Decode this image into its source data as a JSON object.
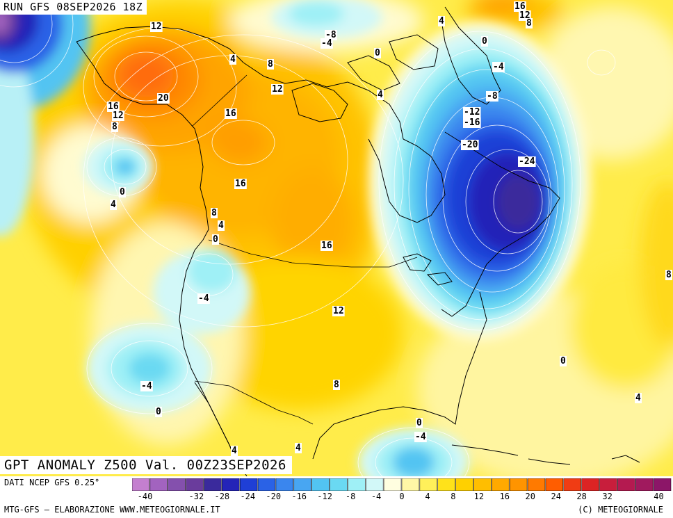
{
  "header": {
    "run": "RUN GFS 08SEP2026 18Z",
    "title": "GPT ANOMALY Z500 Val. 00Z23SEP2026"
  },
  "footer": {
    "source": "DATI NCEP GFS 0.25°",
    "credit_left": "MTG-GFS – ELABORAZIONE WWW.METEOGIORNALE.IT",
    "credit_right": "(C) METEOGIORNALE"
  },
  "colorbar": {
    "tick_labels": [
      "-40",
      "-32",
      "-28",
      "-24",
      "-20",
      "-16",
      "-12",
      "-8",
      "-4",
      "0",
      "4",
      "8",
      "12",
      "16",
      "20",
      "24",
      "28",
      "32",
      "40"
    ],
    "colors": [
      "#c47fcf",
      "#a263bf",
      "#8450ad",
      "#6a3c9c",
      "#3a2a9c",
      "#2424b8",
      "#1f3fd6",
      "#2a62e6",
      "#3a86ee",
      "#48a6f2",
      "#52c4f2",
      "#6ad9f2",
      "#9ff0f6",
      "#d2f8f8",
      "#fffee0",
      "#fff7a6",
      "#fff05a",
      "#ffe21a",
      "#ffd000",
      "#ffbe00",
      "#ffa900",
      "#ff9400",
      "#ff7a00",
      "#ff5d00",
      "#f03c14",
      "#dc2424",
      "#c81e3c",
      "#b41a50",
      "#a01a5e",
      "#8c1668"
    ]
  },
  "contour_labels": [
    {
      "text": "16"
    },
    {
      "text": "12"
    },
    {
      "text": "8"
    },
    {
      "text": "12"
    },
    {
      "text": "20"
    },
    {
      "text": "16"
    },
    {
      "text": "12"
    },
    {
      "text": "8"
    },
    {
      "text": "0"
    },
    {
      "text": "4"
    },
    {
      "text": "4"
    },
    {
      "text": "8"
    },
    {
      "text": "12"
    },
    {
      "text": "16"
    },
    {
      "text": "16"
    },
    {
      "text": "8"
    },
    {
      "text": "4"
    },
    {
      "text": "0"
    },
    {
      "text": "16"
    },
    {
      "text": "-4"
    },
    {
      "text": "12"
    },
    {
      "text": "-4"
    },
    {
      "text": "0"
    },
    {
      "text": "8"
    },
    {
      "text": "4"
    },
    {
      "text": "4"
    },
    {
      "text": "0"
    },
    {
      "text": "-4"
    },
    {
      "text": "-8"
    },
    {
      "text": "-4"
    },
    {
      "text": "0"
    },
    {
      "text": "4"
    },
    {
      "text": "16"
    },
    {
      "text": "12"
    },
    {
      "text": "8"
    },
    {
      "text": "4"
    },
    {
      "text": "0"
    },
    {
      "text": "-4"
    },
    {
      "text": "-8"
    },
    {
      "text": "-12"
    },
    {
      "text": "-16"
    },
    {
      "text": "-20"
    },
    {
      "text": "-24"
    },
    {
      "text": "8"
    },
    {
      "text": "0"
    },
    {
      "text": "4"
    }
  ],
  "map_features": [
    "coastlines",
    "country-borders",
    "geopotential-anomaly-contours"
  ]
}
